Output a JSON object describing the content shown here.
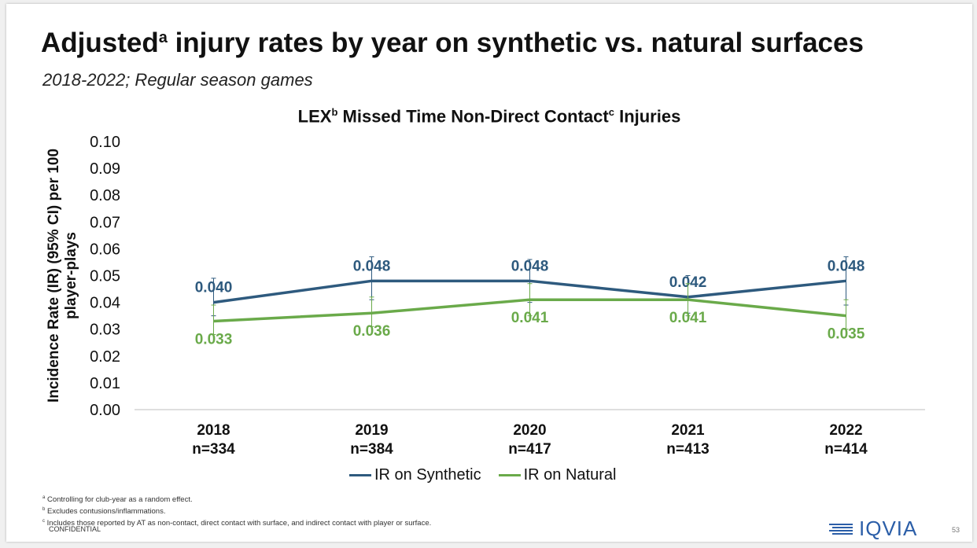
{
  "slide": {
    "title_main": "Adjusted",
    "title_sup": "a",
    "title_rest": " injury rates by year on synthetic vs. natural surfaces",
    "subtitle": "2018-2022; Regular season games",
    "footnotes": [
      {
        "mark": "a",
        "text": "Controlling for club-year as a random effect."
      },
      {
        "mark": "b",
        "text": "Excludes contusions/inflammations."
      },
      {
        "mark": "c",
        "text": "Includes those reported by AT as non-contact, direct contact with surface, and indirect contact with player or surface."
      }
    ],
    "confidential": "CONFIDENTIAL",
    "logo_text": "IQVIA",
    "page_number": "53"
  },
  "chart_data": {
    "type": "line",
    "title_parts": [
      "LEX",
      "b",
      " Missed Time Non-Direct Contact",
      "c",
      " Injuries"
    ],
    "ylabel": "Incidence Rate (IR) (95% CI) per 100 player-plays",
    "ylim": [
      0,
      0.1
    ],
    "yticks": [
      "0.00",
      "0.01",
      "0.02",
      "0.03",
      "0.04",
      "0.05",
      "0.06",
      "0.07",
      "0.08",
      "0.09",
      "0.10"
    ],
    "categories": [
      {
        "year": "2018",
        "n": "n=334"
      },
      {
        "year": "2019",
        "n": "n=384"
      },
      {
        "year": "2020",
        "n": "n=417"
      },
      {
        "year": "2021",
        "n": "n=413"
      },
      {
        "year": "2022",
        "n": "n=414"
      }
    ],
    "series": [
      {
        "name": "IR on Synthetic",
        "color": "#2e5a7e",
        "values": [
          0.04,
          0.048,
          0.048,
          0.042,
          0.048
        ],
        "labels": [
          "0.040",
          "0.048",
          "0.048",
          "0.042",
          "0.048"
        ],
        "ci": [
          [
            0.035,
            0.049
          ],
          [
            0.041,
            0.057
          ],
          [
            0.04,
            0.056
          ],
          [
            0.036,
            0.05
          ],
          [
            0.039,
            0.057
          ]
        ]
      },
      {
        "name": "IR on Natural",
        "color": "#6aaa4a",
        "values": [
          0.033,
          0.036,
          0.041,
          0.041,
          0.035
        ],
        "labels": [
          "0.033",
          "0.036",
          "0.041",
          "0.041",
          "0.035"
        ],
        "ci": [
          [
            0.028,
            0.039
          ],
          [
            0.031,
            0.042
          ],
          [
            0.035,
            0.047
          ],
          [
            0.035,
            0.047
          ],
          [
            0.03,
            0.041
          ]
        ]
      }
    ],
    "legend_position": "bottom",
    "grid": false
  }
}
